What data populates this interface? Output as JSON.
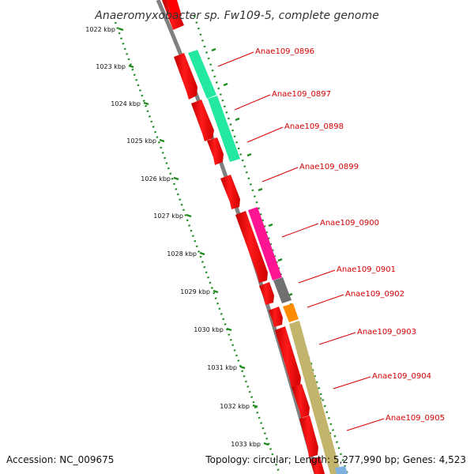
{
  "title": "Anaeromyxobacter sp. Fw109-5, complete genome",
  "footer": {
    "accession": "Accession: NC_009675",
    "summary": "Topology: circular; Length: 5,277,990 bp; Genes: 4,523"
  },
  "colors": {
    "background": "#ffffff",
    "backbone": "#808080",
    "cds_forward": "#ff0000",
    "scale_ticks": "#228b22",
    "gene_label": "#d40000",
    "cog_green": "#22e8a0",
    "cog_magenta": "#ff1493",
    "cog_gray": "#707070",
    "cog_orange": "#ff8c00",
    "cog_khaki": "#c2b56b",
    "cog_blue": "#7fb0e0"
  },
  "scale": {
    "unit": "kbp",
    "labels": [
      "1022 kbp",
      "1023 kbp",
      "1024 kbp",
      "1025 kbp",
      "1026 kbp",
      "1027 kbp",
      "1028 kbp",
      "1029 kbp",
      "1030 kbp",
      "1031 kbp",
      "1032 kbp",
      "1033 kbp"
    ]
  },
  "genes": [
    {
      "id": "Anae109_0896",
      "label": "Anae109_0896",
      "cog_color": "#22e8a0"
    },
    {
      "id": "Anae109_0897",
      "label": "Anae109_0897",
      "cog_color": "#22e8a0"
    },
    {
      "id": "Anae109_0898",
      "label": "Anae109_0898",
      "cog_color": "#22e8a0"
    },
    {
      "id": "Anae109_0899",
      "label": "Anae109_0899",
      "cog_color": null
    },
    {
      "id": "Anae109_0900",
      "label": "Anae109_0900",
      "cog_color": "#ff1493"
    },
    {
      "id": "Anae109_0901",
      "label": "Anae109_0901",
      "cog_color": "#707070"
    },
    {
      "id": "Anae109_0902",
      "label": "Anae109_0902",
      "cog_color": "#ff8c00"
    },
    {
      "id": "Anae109_0903",
      "label": "Anae109_0903",
      "cog_color": "#c2b56b"
    },
    {
      "id": "Anae109_0904",
      "label": "Anae109_0904",
      "cog_color": "#c2b56b"
    },
    {
      "id": "Anae109_0905",
      "label": "Anae109_0905",
      "cog_color": "#c2b56b"
    }
  ]
}
